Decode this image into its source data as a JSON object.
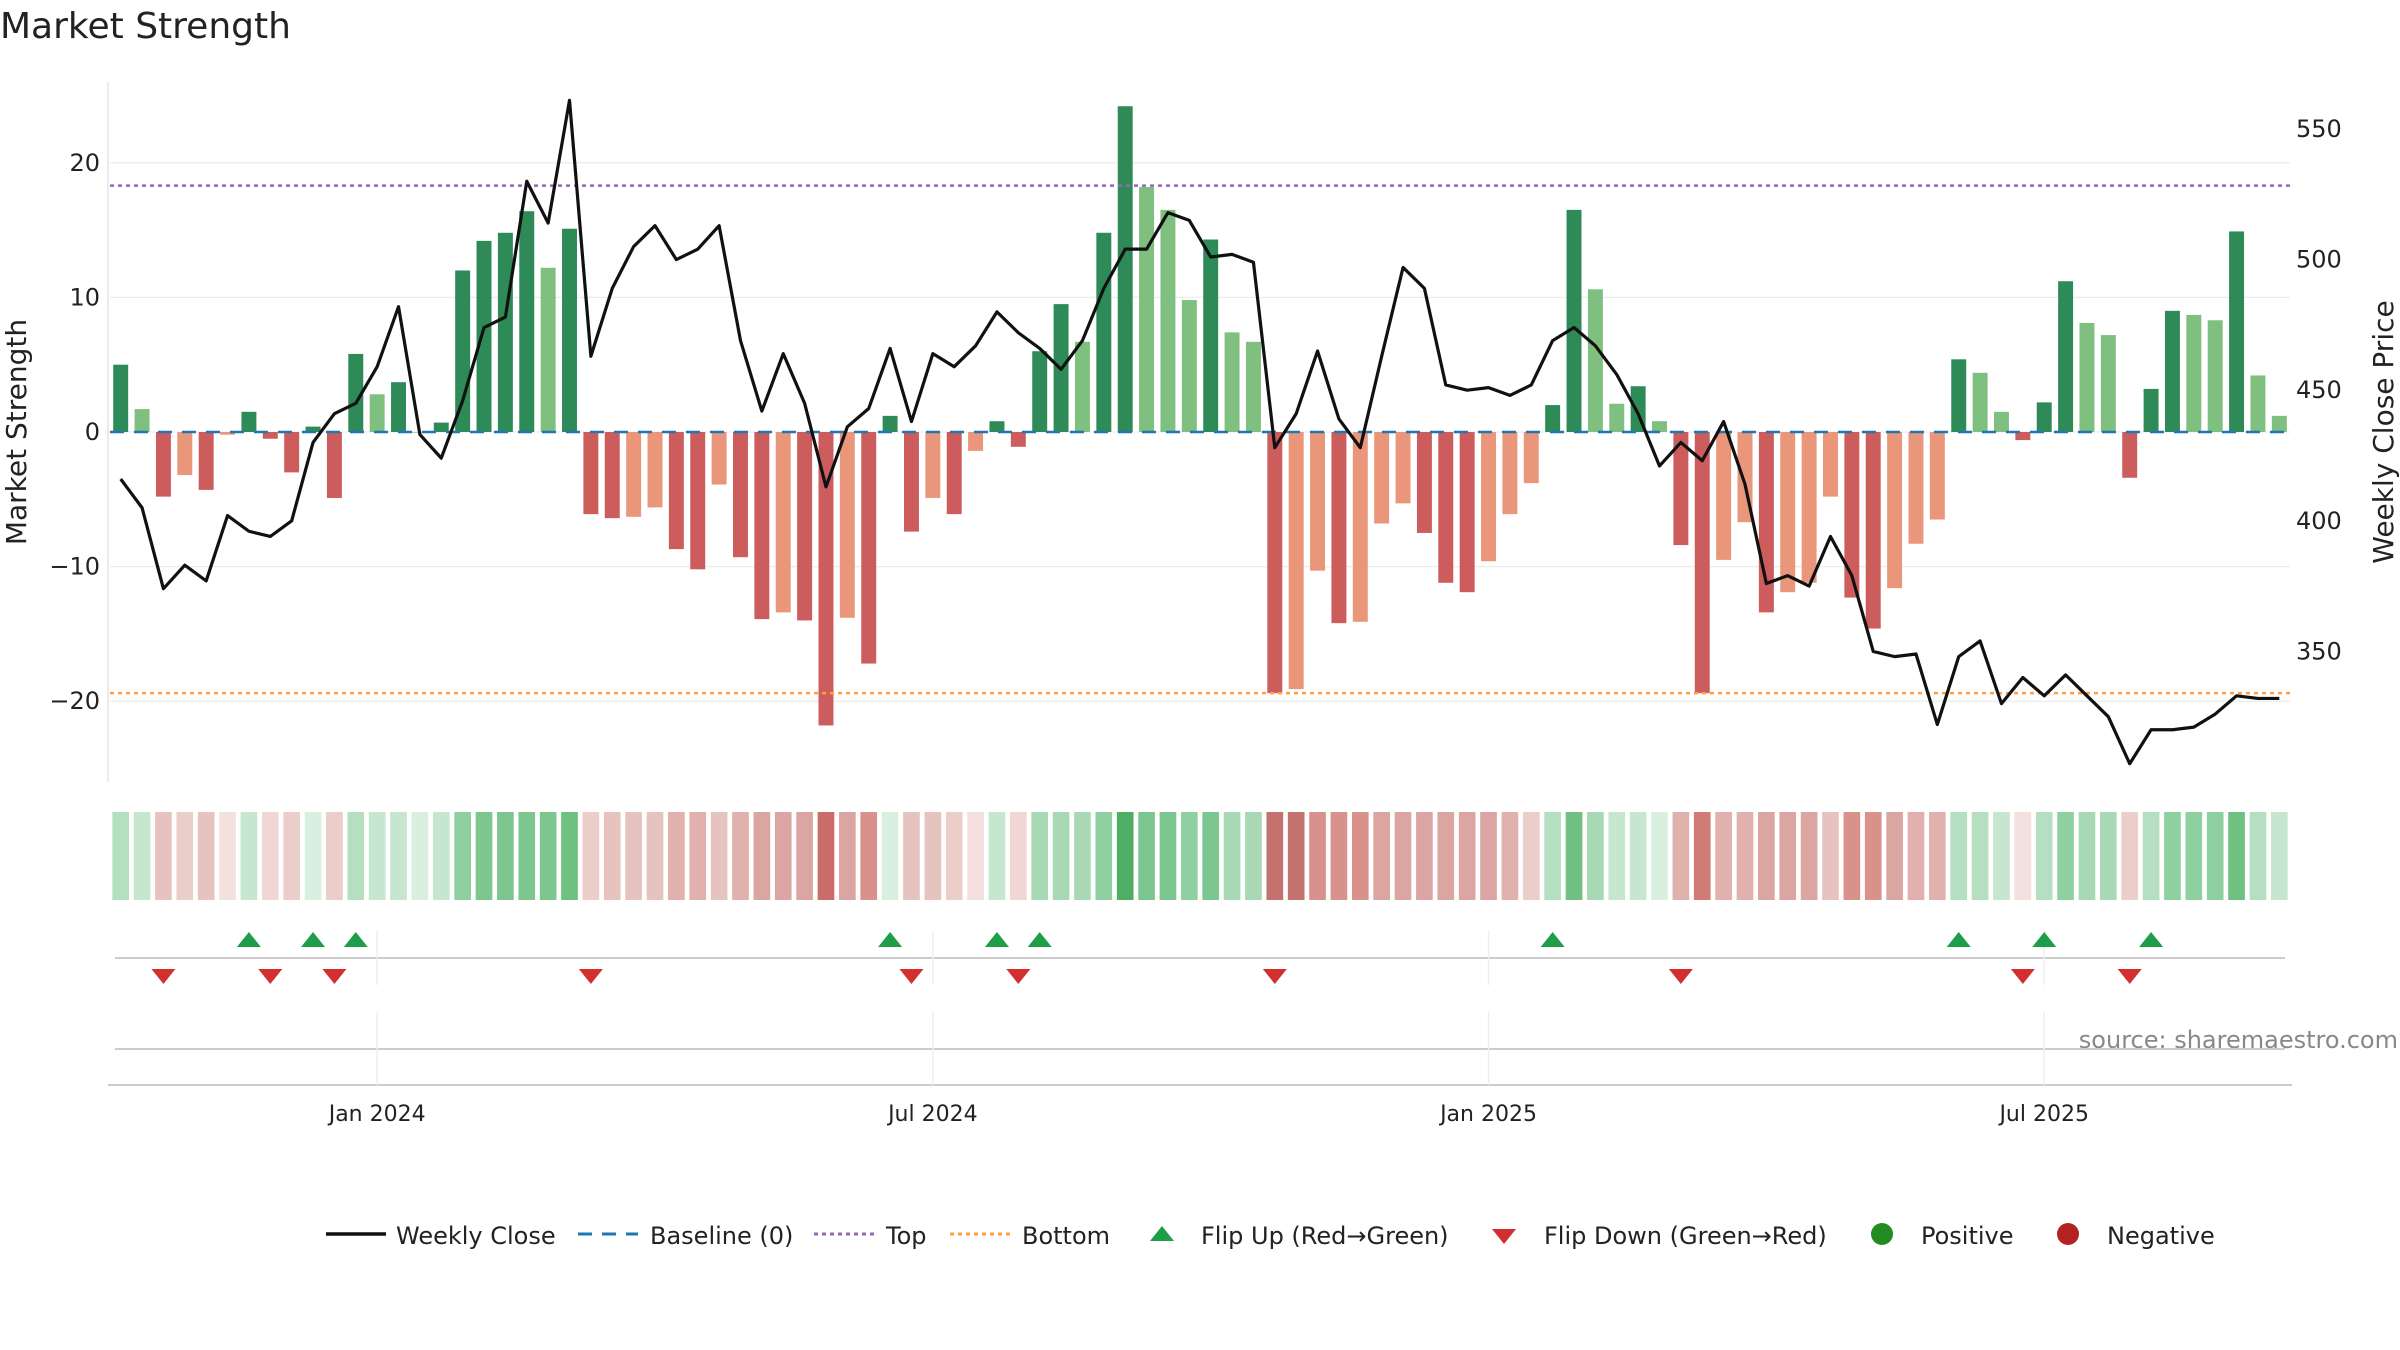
{
  "chart_data": {
    "type": "bar",
    "title": "Market Strength",
    "ylabel_left": "Market Strength",
    "ylabel_right": "Weekly Close Price",
    "source": "source: sharemaestro.com",
    "ylim_left": [
      -26,
      26
    ],
    "ylim_right": [
      300,
      568
    ],
    "y_ticks_left": [
      {
        "v": 20,
        "t": "20"
      },
      {
        "v": 10,
        "t": "10"
      },
      {
        "v": 0,
        "t": "0"
      },
      {
        "v": -10,
        "t": "−10"
      },
      {
        "v": -20,
        "t": "−20"
      }
    ],
    "y_ticks_right": [
      {
        "v": 550,
        "t": "550"
      },
      {
        "v": 500,
        "t": "500"
      },
      {
        "v": 450,
        "t": "450"
      },
      {
        "v": 400,
        "t": "400"
      },
      {
        "v": 350,
        "t": "350"
      }
    ],
    "x_ticks": [
      {
        "i": 12,
        "t": "Jan 2024"
      },
      {
        "i": 38,
        "t": "Jul 2024"
      },
      {
        "i": 64,
        "t": "Jan 2025"
      },
      {
        "i": 90,
        "t": "Jul 2025"
      }
    ],
    "top_level": 18.3,
    "bottom_level": -19.4,
    "strength": [
      5,
      1.7,
      -4.8,
      -3.2,
      -4.3,
      -0.2,
      1.5,
      -0.5,
      -3,
      0.4,
      -4.9,
      5.8,
      2.8,
      3.7,
      0,
      0.7,
      12,
      14.2,
      14.8,
      16.4,
      12.2,
      15.1,
      -6.1,
      -6.4,
      -6.3,
      -5.6,
      -8.7,
      -10.2,
      -3.9,
      -9.3,
      -13.9,
      -13.4,
      -14,
      -21.8,
      -13.8,
      -17.2,
      1.2,
      -7.4,
      -4.9,
      -6.1,
      -1.4,
      0.8,
      -1.1,
      6,
      9.5,
      6.7,
      14.8,
      24.2,
      18.2,
      16.5,
      9.8,
      14.3,
      7.4,
      6.7,
      -19.4,
      -19.1,
      -10.3,
      -14.2,
      -14.1,
      -6.8,
      -5.3,
      -7.5,
      -11.2,
      -11.9,
      -9.6,
      -6.1,
      -3.8,
      2,
      16.5,
      10.6,
      2.1,
      3.4,
      0.8,
      -8.4,
      -19.4,
      -9.5,
      -6.7,
      -13.4,
      -11.9,
      -11.2,
      -4.8,
      -12.3,
      -14.6,
      -11.6,
      -8.3,
      -6.5,
      5.4,
      4.4,
      1.5,
      -0.6,
      2.2,
      11.2,
      8.1,
      7.2,
      -3.4,
      3.2,
      9,
      8.7,
      8.3,
      14.9,
      4.2,
      1.2
    ],
    "bar_colors": [
      "#2e8b57",
      "#7fbf7f",
      "#cd5c5c",
      "#e9967a",
      "#cd5c5c",
      "#e9967a",
      "#2e8b57",
      "#cd5c5c",
      "#cd5c5c",
      "#2e8b57",
      "#cd5c5c",
      "#2e8b57",
      "#7fbf7f",
      "#2e8b57",
      "#7fbf7f",
      "#2e8b57",
      "#2e8b57",
      "#2e8b57",
      "#2e8b57",
      "#2e8b57",
      "#7fbf7f",
      "#2e8b57",
      "#cd5c5c",
      "#cd5c5c",
      "#e9967a",
      "#e9967a",
      "#cd5c5c",
      "#cd5c5c",
      "#e9967a",
      "#cd5c5c",
      "#cd5c5c",
      "#e9967a",
      "#cd5c5c",
      "#cd5c5c",
      "#e9967a",
      "#cd5c5c",
      "#2e8b57",
      "#cd5c5c",
      "#e9967a",
      "#cd5c5c",
      "#e9967a",
      "#2e8b57",
      "#cd5c5c",
      "#2e8b57",
      "#2e8b57",
      "#7fbf7f",
      "#2e8b57",
      "#2e8b57",
      "#7fbf7f",
      "#7fbf7f",
      "#7fbf7f",
      "#2e8b57",
      "#7fbf7f",
      "#7fbf7f",
      "#cd5c5c",
      "#e9967a",
      "#e9967a",
      "#cd5c5c",
      "#e9967a",
      "#e9967a",
      "#e9967a",
      "#cd5c5c",
      "#cd5c5c",
      "#cd5c5c",
      "#e9967a",
      "#e9967a",
      "#e9967a",
      "#2e8b57",
      "#2e8b57",
      "#7fbf7f",
      "#7fbf7f",
      "#2e8b57",
      "#7fbf7f",
      "#cd5c5c",
      "#cd5c5c",
      "#e9967a",
      "#e9967a",
      "#cd5c5c",
      "#e9967a",
      "#e9967a",
      "#e9967a",
      "#cd5c5c",
      "#cd5c5c",
      "#e9967a",
      "#e9967a",
      "#e9967a",
      "#2e8b57",
      "#7fbf7f",
      "#7fbf7f",
      "#cd5c5c",
      "#2e8b57",
      "#2e8b57",
      "#7fbf7f",
      "#7fbf7f",
      "#cd5c5c",
      "#2e8b57",
      "#2e8b57",
      "#7fbf7f",
      "#7fbf7f",
      "#2e8b57",
      "#7fbf7f",
      "#7fbf7f"
    ],
    "strip_colors": [
      "#b5dfc1",
      "#c6e6cf",
      "#e7c3c0",
      "#ebcdca",
      "#e7c3c0",
      "#f3e0df",
      "#c6e6cf",
      "#f0d6d4",
      "#ebcdca",
      "#d9efdf",
      "#ebcdca",
      "#b5dfc1",
      "#c6e6cf",
      "#c6e6cf",
      "#d9efdf",
      "#c6e6cf",
      "#8fd0a0",
      "#7ec690",
      "#7ec690",
      "#7ec690",
      "#7ec690",
      "#6fc081",
      "#ebcdca",
      "#e7c3c0",
      "#e7c3c0",
      "#e7c3c0",
      "#e0b1ad",
      "#e0b1ad",
      "#e7c3c0",
      "#e0b1ad",
      "#dba6a2",
      "#dba6a2",
      "#dba6a2",
      "#c96d69",
      "#dba6a2",
      "#d9918c",
      "#d9efdf",
      "#e7c3c0",
      "#e7c3c0",
      "#ebcdca",
      "#f3e0df",
      "#c6e6cf",
      "#f0d6d4",
      "#a8d9b4",
      "#a8d9b4",
      "#a8d9b4",
      "#8fd0a0",
      "#4fae63",
      "#7ec690",
      "#7ec690",
      "#8fd0a0",
      "#7ec690",
      "#a8d9b4",
      "#a8d9b4",
      "#c4726e",
      "#c4726e",
      "#d9918c",
      "#d9918c",
      "#d9918c",
      "#dba6a2",
      "#dba6a2",
      "#dba6a2",
      "#dba6a2",
      "#dba6a2",
      "#dba6a2",
      "#e0b1ad",
      "#ebcdca",
      "#b5dfc1",
      "#6fc081",
      "#a8d9b4",
      "#c6e6cf",
      "#c6e6cf",
      "#d9efdf",
      "#e0b1ad",
      "#d07b75",
      "#e0b1ad",
      "#e0b1ad",
      "#dba6a2",
      "#dba6a2",
      "#dba6a2",
      "#e7c3c0",
      "#d9918c",
      "#d9918c",
      "#dba6a2",
      "#e0b1ad",
      "#e0b1ad",
      "#b5dfc1",
      "#b5dfc1",
      "#c6e6cf",
      "#f3e0df",
      "#b5dfc1",
      "#8fd0a0",
      "#a8d9b4",
      "#a8d9b4",
      "#ebcdca",
      "#b5dfc1",
      "#8fd0a0",
      "#8fd0a0",
      "#8fd0a0",
      "#6fc081",
      "#b5dfc1",
      "#c6e6cf"
    ],
    "close": [
      416,
      405,
      374,
      383,
      377,
      402,
      396,
      394,
      400,
      430,
      441,
      445,
      459,
      482,
      433,
      424,
      446,
      474,
      478,
      530,
      514,
      561,
      463,
      489,
      505,
      513,
      500,
      504,
      513,
      469,
      442,
      464,
      445,
      413,
      436,
      443,
      466,
      438,
      464,
      459,
      467,
      480,
      472,
      466,
      458,
      469,
      489,
      504,
      504,
      518,
      515,
      501,
      502,
      499,
      428,
      441,
      465,
      439,
      428,
      463,
      497,
      489,
      452,
      450,
      451,
      448,
      452,
      469,
      474,
      467,
      456,
      441,
      421,
      430,
      423,
      438,
      414,
      376,
      379,
      375,
      394,
      379,
      350,
      348,
      349,
      322,
      348,
      354,
      330,
      340,
      333,
      341,
      333,
      325,
      307,
      320,
      320,
      321,
      326,
      333,
      332,
      332
    ],
    "flip_up_idx": [
      6,
      9,
      11,
      36,
      41,
      43,
      67,
      86,
      90,
      95
    ],
    "flip_down_idx": [
      2,
      7,
      10,
      22,
      37,
      42,
      54,
      73,
      89,
      94
    ],
    "legend": {
      "close": "Weekly Close",
      "baseline": "Baseline (0)",
      "top": "Top",
      "bottom": "Bottom",
      "flip_up": "Flip Up (Red→Green)",
      "flip_down": "Flip Down (Green→Red)",
      "positive": "Positive",
      "negative": "Negative"
    },
    "colors": {
      "strong_pos": "#2e8b57",
      "weak_pos": "#7fbf7f",
      "strong_neg": "#cd5c5c",
      "weak_neg": "#e9967a",
      "close_line": "#111111",
      "baseline": "#1f77b4",
      "top": "#9467bd",
      "bottom": "#ff9f40",
      "flip_up": "#1e9e48",
      "flip_down": "#d32f2f",
      "positive": "#228b22",
      "negative": "#b22222"
    }
  }
}
